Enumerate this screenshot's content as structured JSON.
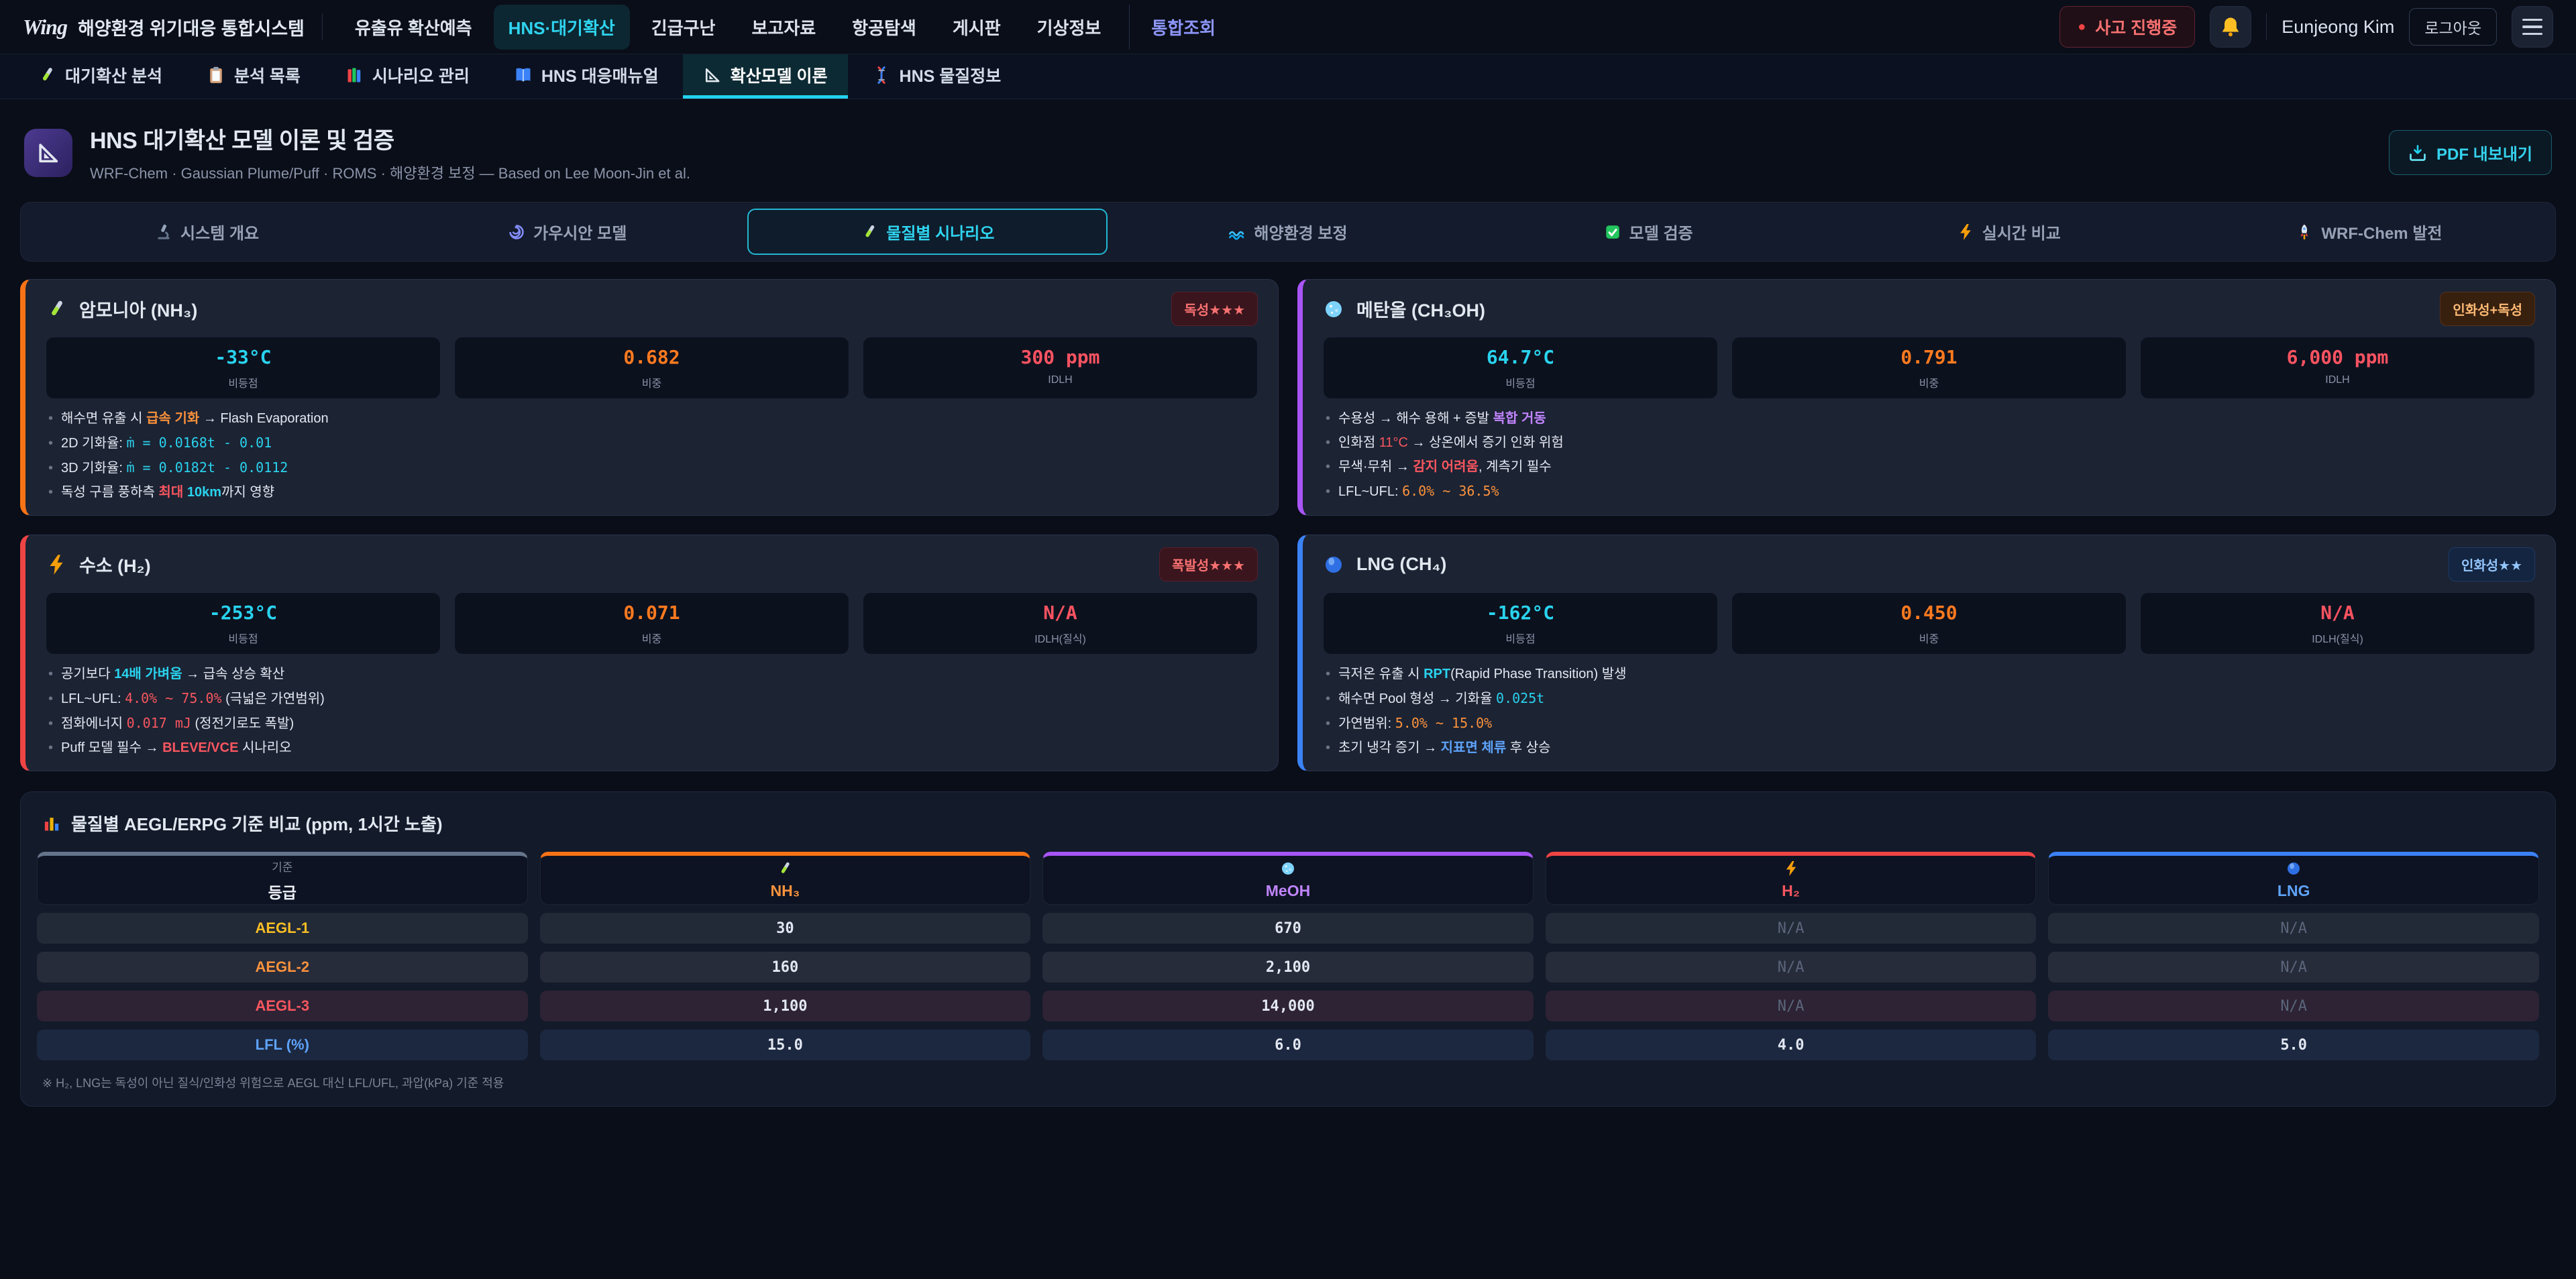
{
  "colors": {
    "accent_cyan": "#22d3ee",
    "accent_indigo": "#818cf8",
    "danger_red": "#f87171",
    "warn_orange": "#fb923c",
    "purple": "#c084fc",
    "blue": "#3b82f6"
  },
  "navbar": {
    "logo": "Wing",
    "brand": "해양환경 위기대응 통합시스템",
    "items": [
      {
        "label": "유출유 확산예측"
      },
      {
        "label": "HNS·대기확산",
        "active": true
      },
      {
        "label": "긴급구난"
      },
      {
        "label": "보고자료"
      },
      {
        "label": "항공탐색"
      },
      {
        "label": "게시판"
      },
      {
        "label": "기상정보"
      },
      {
        "label": "통합조회",
        "accent": true,
        "divider_before": true
      }
    ],
    "status_badge": "사고 진행중",
    "user_name": "Eunjeong Kim",
    "logout_label": "로그아웃"
  },
  "subnav": [
    {
      "icon": "test-tube-icon",
      "label": "대기확산 분석"
    },
    {
      "icon": "clipboard-icon",
      "label": "분석 목록"
    },
    {
      "icon": "books-icon",
      "label": "시나리오 관리"
    },
    {
      "icon": "open-book-icon",
      "label": "HNS 대응매뉴얼"
    },
    {
      "icon": "set-square-icon",
      "label": "확산모델 이론",
      "active": true
    },
    {
      "icon": "dna-icon",
      "label": "HNS 물질정보"
    }
  ],
  "header": {
    "icon": "set-square-icon",
    "title": "HNS 대기확산 모델 이론 및 검증",
    "subtitle": "WRF-Chem · Gaussian Plume/Puff · ROMS · 해양환경 보정 — Based on Lee Moon-Jin et al.",
    "export_icon": "download-tray-icon",
    "export_label": "PDF 내보내기"
  },
  "section_tabs": [
    {
      "icon": "microscope-icon",
      "label": "시스템 개요"
    },
    {
      "icon": "spiral-icon",
      "label": "가우시안 모델"
    },
    {
      "icon": "test-tube-icon",
      "label": "물질별 시나리오",
      "active": true
    },
    {
      "icon": "wave-icon",
      "label": "해양환경 보정"
    },
    {
      "icon": "check-icon",
      "label": "모델 검증"
    },
    {
      "icon": "bolt-icon",
      "label": "실시간 비교"
    },
    {
      "icon": "rocket-icon",
      "label": "WRF-Chem 발전"
    }
  ],
  "cards": [
    {
      "id": "nh3",
      "icon": "test-tube-icon",
      "name": "암모니아 (NH₃)",
      "accent": "#f97316",
      "badge": {
        "text": "독성★★★",
        "tone": "red"
      },
      "stats": [
        {
          "value": "-33°C",
          "label": "비등점",
          "tone": "cyan"
        },
        {
          "value": "0.682",
          "label": "비중",
          "tone": "orange"
        },
        {
          "value": "300 ppm",
          "label": "IDLH",
          "tone": "red"
        }
      ],
      "bullets": [
        [
          {
            "t": "해수면 유출 시 "
          },
          {
            "t": "급속 기화",
            "s": "orange b"
          },
          {
            "t": " → Flash Evaporation"
          }
        ],
        [
          {
            "t": "2D 기화율: "
          },
          {
            "t": "ṁ = 0.0168t - 0.01",
            "s": "mono cyan"
          }
        ],
        [
          {
            "t": "3D 기화율: "
          },
          {
            "t": "ṁ = 0.0182t - 0.0112",
            "s": "mono cyan"
          }
        ],
        [
          {
            "t": "독성 구름 풍하측 "
          },
          {
            "t": "최대",
            "s": "red b"
          },
          {
            "t": " "
          },
          {
            "t": "10km",
            "s": "cyan b"
          },
          {
            "t": "까지 영향"
          }
        ]
      ]
    },
    {
      "id": "meoh",
      "icon": "petri-icon",
      "name": "메탄올 (CH₃OH)",
      "accent": "#a855f7",
      "badge": {
        "text": "인화성+독성",
        "tone": "orange"
      },
      "stats": [
        {
          "value": "64.7°C",
          "label": "비등점",
          "tone": "cyan"
        },
        {
          "value": "0.791",
          "label": "비중",
          "tone": "orange"
        },
        {
          "value": "6,000 ppm",
          "label": "IDLH",
          "tone": "red"
        }
      ],
      "bullets": [
        [
          {
            "t": "수용성 → 해수 용해 + 증발 "
          },
          {
            "t": "복합 거동",
            "s": "purple b"
          }
        ],
        [
          {
            "t": "인화점 "
          },
          {
            "t": "11°C",
            "s": "red"
          },
          {
            "t": " → 상온에서 증기 인화 위험"
          }
        ],
        [
          {
            "t": "무색·무취 → "
          },
          {
            "t": "감지 어려움",
            "s": "red b"
          },
          {
            "t": ", 계측기 필수"
          }
        ],
        [
          {
            "t": "LFL~UFL: "
          },
          {
            "t": "6.0% ~ 36.5%",
            "s": "mono orange"
          }
        ]
      ]
    },
    {
      "id": "h2",
      "icon": "bolt-icon",
      "name": "수소 (H₂)",
      "accent": "#ef4444",
      "badge": {
        "text": "폭발성★★★",
        "tone": "red"
      },
      "stats": [
        {
          "value": "-253°C",
          "label": "비등점",
          "tone": "cyan"
        },
        {
          "value": "0.071",
          "label": "비중",
          "tone": "orange"
        },
        {
          "value": "N/A",
          "label": "IDLH(질식)",
          "tone": "red"
        }
      ],
      "bullets": [
        [
          {
            "t": "공기보다 "
          },
          {
            "t": "14배 가벼움",
            "s": "cyan b"
          },
          {
            "t": " → 급속 상승 확산"
          }
        ],
        [
          {
            "t": "LFL~UFL: "
          },
          {
            "t": "4.0% ~ 75.0%",
            "s": "mono red"
          },
          {
            "t": " (극넓은 가연범위)"
          }
        ],
        [
          {
            "t": "점화에너지 "
          },
          {
            "t": "0.017 mJ",
            "s": "mono red"
          },
          {
            "t": " (정전기로도 폭발)"
          }
        ],
        [
          {
            "t": "Puff 모델 필수 → "
          },
          {
            "t": "BLEVE/VCE",
            "s": "red b"
          },
          {
            "t": " 시나리오"
          }
        ]
      ]
    },
    {
      "id": "lng",
      "icon": "sphere-icon",
      "name": "LNG (CH₄)",
      "accent": "#3b82f6",
      "badge": {
        "text": "인화성★★",
        "tone": "blue"
      },
      "stats": [
        {
          "value": "-162°C",
          "label": "비등점",
          "tone": "cyan"
        },
        {
          "value": "0.450",
          "label": "비중",
          "tone": "orange"
        },
        {
          "value": "N/A",
          "label": "IDLH(질식)",
          "tone": "red"
        }
      ],
      "bullets": [
        [
          {
            "t": "극저온 유출 시 "
          },
          {
            "t": "RPT",
            "s": "cyan b"
          },
          {
            "t": "(Rapid Phase Transition) 발생"
          }
        ],
        [
          {
            "t": "해수면 Pool 형성 → 기화율 "
          },
          {
            "t": "0.025t",
            "s": "mono cyan"
          }
        ],
        [
          {
            "t": "가연범위: "
          },
          {
            "t": "5.0% ~ 15.0%",
            "s": "mono orange"
          }
        ],
        [
          {
            "t": "초기 냉각 증기 → "
          },
          {
            "t": "지표면 체류",
            "s": "blue b"
          },
          {
            "t": " 후 상승"
          }
        ]
      ]
    }
  ],
  "table": {
    "title_icon": "bar-chart-icon",
    "title": "물질별 AEGL/ERPG 기준 비교 (ppm, 1시간 노출)",
    "columns": [
      {
        "top": "기준",
        "label": "등급",
        "accent": "#64748b",
        "tone": "plain"
      },
      {
        "icon": "test-tube-icon",
        "label": "NH₃",
        "accent": "#f97316",
        "tone": "orange"
      },
      {
        "icon": "petri-icon",
        "label": "MeOH",
        "accent": "#a855f7",
        "tone": "purple"
      },
      {
        "icon": "bolt-icon",
        "label": "H₂",
        "accent": "#ef4444",
        "tone": "red"
      },
      {
        "icon": "sphere-icon",
        "label": "LNG",
        "accent": "#3b82f6",
        "tone": "blue"
      }
    ],
    "rows": [
      {
        "label": "AEGL-1",
        "label_tone": "amber",
        "row_tone": "a",
        "values": [
          {
            "v": "30"
          },
          {
            "v": "670"
          },
          {
            "v": "N/A",
            "muted": true
          },
          {
            "v": "N/A",
            "muted": true
          }
        ]
      },
      {
        "label": "AEGL-2",
        "label_tone": "orange",
        "row_tone": "b",
        "values": [
          {
            "v": "160"
          },
          {
            "v": "2,100"
          },
          {
            "v": "N/A",
            "muted": true
          },
          {
            "v": "N/A",
            "muted": true
          }
        ]
      },
      {
        "label": "AEGL-3",
        "label_tone": "red",
        "row_tone": "red",
        "values": [
          {
            "v": "1,100",
            "tone": "red"
          },
          {
            "v": "14,000",
            "tone": "red"
          },
          {
            "v": "N/A",
            "muted": true
          },
          {
            "v": "N/A",
            "muted": true
          }
        ]
      },
      {
        "label": "LFL (%)",
        "label_tone": "blue",
        "row_tone": "blue",
        "values": [
          {
            "v": "15.0"
          },
          {
            "v": "6.0"
          },
          {
            "v": "4.0",
            "tone": "red"
          },
          {
            "v": "5.0"
          }
        ]
      }
    ],
    "footnote": "※ H₂, LNG는 독성이 아닌 질식/인화성 위험으로 AEGL 대신 LFL/UFL, 과압(kPa) 기준 적용"
  }
}
